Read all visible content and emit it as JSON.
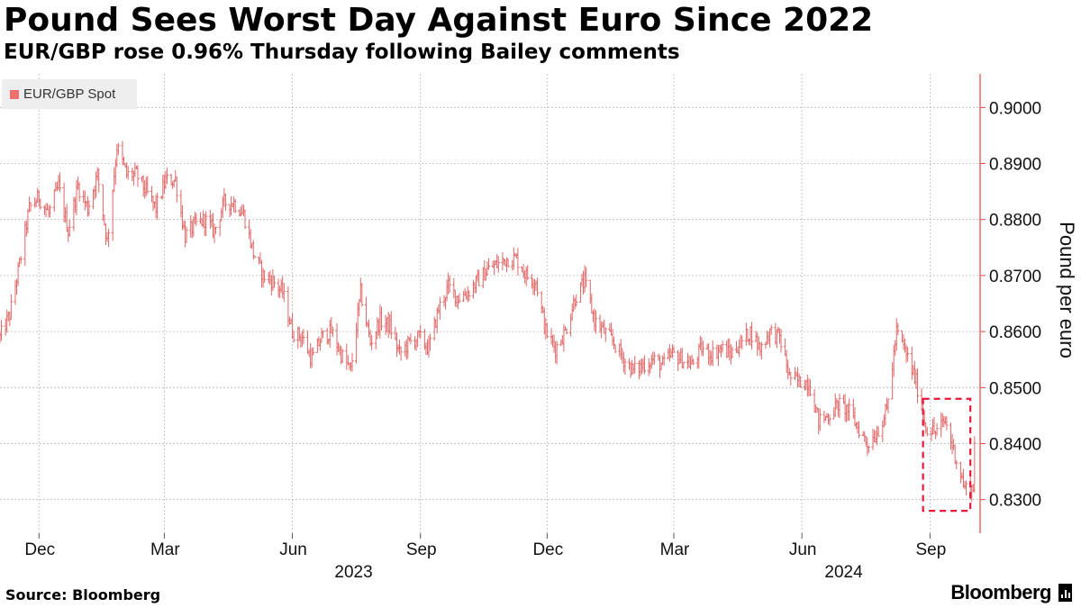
{
  "header": {
    "title": "Pound Sees Worst Day Against Euro Since 2022",
    "subtitle": "EUR/GBP rose 0.96% Thursday following Bailey comments"
  },
  "footer": {
    "source": "Source: Bloomberg",
    "brand": "Bloomberg"
  },
  "colors": {
    "series": "#e06666",
    "legend_swatch": "#f07070",
    "axis": "#e04848",
    "highlight_box": "#e8173a",
    "grid": "#bbbbbb"
  },
  "chart_data": {
    "type": "ohlc",
    "legend": [
      "EUR/GBP Spot"
    ],
    "ylabel": "Pound per euro",
    "ylim": [
      0.824,
      0.906
    ],
    "y_ticks": [
      "0.8300",
      "0.8400",
      "0.8500",
      "0.8600",
      "0.8700",
      "0.8800",
      "0.8900",
      "0.9000"
    ],
    "x_range": [
      "2022-11-03",
      "2024-10-07"
    ],
    "x_ticks": [
      {
        "date": "2022-12-01",
        "label": "Dec"
      },
      {
        "date": "2023-03-01",
        "label": "Mar"
      },
      {
        "date": "2023-06-01",
        "label": "Jun"
      },
      {
        "date": "2023-09-01",
        "label": "Sep"
      },
      {
        "date": "2023-12-01",
        "label": "Dec"
      },
      {
        "date": "2024-03-01",
        "label": "Mar"
      },
      {
        "date": "2024-06-01",
        "label": "Jun"
      },
      {
        "date": "2024-09-01",
        "label": "Sep"
      }
    ],
    "year_labels": [
      {
        "date": "2023-07-15",
        "label": "2023"
      },
      {
        "date": "2024-07-01",
        "label": "2024"
      }
    ],
    "grid": true,
    "legend_position": "top-left",
    "y_axis_side": "right",
    "highlight": {
      "x0": "2024-08-27",
      "x1": "2024-09-30",
      "y0": 0.828,
      "y1": 0.848
    },
    "series": [
      {
        "name": "EUR/GBP Spot",
        "anchors": [
          [
            "2022-11-03",
            0.859
          ],
          [
            "2022-11-10",
            0.863
          ],
          [
            "2022-11-17",
            0.872
          ],
          [
            "2022-11-24",
            0.882
          ],
          [
            "2022-12-01",
            0.884
          ],
          [
            "2022-12-08",
            0.881
          ],
          [
            "2022-12-15",
            0.886
          ],
          [
            "2022-12-22",
            0.878
          ],
          [
            "2022-12-29",
            0.886
          ],
          [
            "2023-01-05",
            0.882
          ],
          [
            "2023-01-12",
            0.888
          ],
          [
            "2023-01-19",
            0.876
          ],
          [
            "2023-01-26",
            0.893
          ],
          [
            "2023-02-02",
            0.888
          ],
          [
            "2023-02-09",
            0.888
          ],
          [
            "2023-02-16",
            0.885
          ],
          [
            "2023-02-23",
            0.882
          ],
          [
            "2023-03-02",
            0.887
          ],
          [
            "2023-03-09",
            0.887
          ],
          [
            "2023-03-16",
            0.877
          ],
          [
            "2023-03-23",
            0.879
          ],
          [
            "2023-03-30",
            0.88
          ],
          [
            "2023-04-06",
            0.878
          ],
          [
            "2023-04-13",
            0.883
          ],
          [
            "2023-04-20",
            0.883
          ],
          [
            "2023-04-27",
            0.881
          ],
          [
            "2023-05-04",
            0.874
          ],
          [
            "2023-05-11",
            0.87
          ],
          [
            "2023-05-18",
            0.869
          ],
          [
            "2023-05-25",
            0.867
          ],
          [
            "2023-06-01",
            0.86
          ],
          [
            "2023-06-08",
            0.859
          ],
          [
            "2023-06-15",
            0.855
          ],
          [
            "2023-06-22",
            0.859
          ],
          [
            "2023-06-29",
            0.86
          ],
          [
            "2023-07-06",
            0.856
          ],
          [
            "2023-07-13",
            0.853
          ],
          [
            "2023-07-20",
            0.867
          ],
          [
            "2023-07-27",
            0.858
          ],
          [
            "2023-08-03",
            0.862
          ],
          [
            "2023-08-10",
            0.861
          ],
          [
            "2023-08-17",
            0.856
          ],
          [
            "2023-08-24",
            0.858
          ],
          [
            "2023-08-31",
            0.859
          ],
          [
            "2023-09-07",
            0.857
          ],
          [
            "2023-09-14",
            0.864
          ],
          [
            "2023-09-21",
            0.868
          ],
          [
            "2023-09-28",
            0.866
          ],
          [
            "2023-10-05",
            0.867
          ],
          [
            "2023-10-12",
            0.869
          ],
          [
            "2023-10-19",
            0.871
          ],
          [
            "2023-10-26",
            0.872
          ],
          [
            "2023-11-02",
            0.873
          ],
          [
            "2023-11-09",
            0.873
          ],
          [
            "2023-11-16",
            0.87
          ],
          [
            "2023-11-23",
            0.869
          ],
          [
            "2023-11-30",
            0.86
          ],
          [
            "2023-12-07",
            0.857
          ],
          [
            "2023-12-14",
            0.86
          ],
          [
            "2023-12-21",
            0.866
          ],
          [
            "2023-12-28",
            0.869
          ],
          [
            "2024-01-04",
            0.862
          ],
          [
            "2024-01-11",
            0.86
          ],
          [
            "2024-01-18",
            0.858
          ],
          [
            "2024-01-25",
            0.855
          ],
          [
            "2024-02-01",
            0.853
          ],
          [
            "2024-02-08",
            0.854
          ],
          [
            "2024-02-15",
            0.855
          ],
          [
            "2024-02-22",
            0.854
          ],
          [
            "2024-02-29",
            0.856
          ],
          [
            "2024-03-07",
            0.855
          ],
          [
            "2024-03-14",
            0.854
          ],
          [
            "2024-03-21",
            0.857
          ],
          [
            "2024-03-28",
            0.856
          ],
          [
            "2024-04-04",
            0.857
          ],
          [
            "2024-04-11",
            0.856
          ],
          [
            "2024-04-18",
            0.858
          ],
          [
            "2024-04-25",
            0.86
          ],
          [
            "2024-05-02",
            0.857
          ],
          [
            "2024-05-09",
            0.86
          ],
          [
            "2024-05-16",
            0.859
          ],
          [
            "2024-05-23",
            0.852
          ],
          [
            "2024-05-30",
            0.851
          ],
          [
            "2024-06-06",
            0.851
          ],
          [
            "2024-06-13",
            0.844
          ],
          [
            "2024-06-20",
            0.845
          ],
          [
            "2024-06-27",
            0.847
          ],
          [
            "2024-07-04",
            0.846
          ],
          [
            "2024-07-11",
            0.843
          ],
          [
            "2024-07-18",
            0.84
          ],
          [
            "2024-07-25",
            0.842
          ],
          [
            "2024-08-01",
            0.846
          ],
          [
            "2024-08-08",
            0.86
          ],
          [
            "2024-08-15",
            0.856
          ],
          [
            "2024-08-22",
            0.851
          ],
          [
            "2024-08-29",
            0.843
          ],
          [
            "2024-09-05",
            0.842
          ],
          [
            "2024-09-12",
            0.844
          ],
          [
            "2024-09-19",
            0.838
          ],
          [
            "2024-09-26",
            0.832
          ],
          [
            "2024-10-02",
            0.832
          ],
          [
            "2024-10-03",
            0.841
          ]
        ]
      }
    ]
  }
}
